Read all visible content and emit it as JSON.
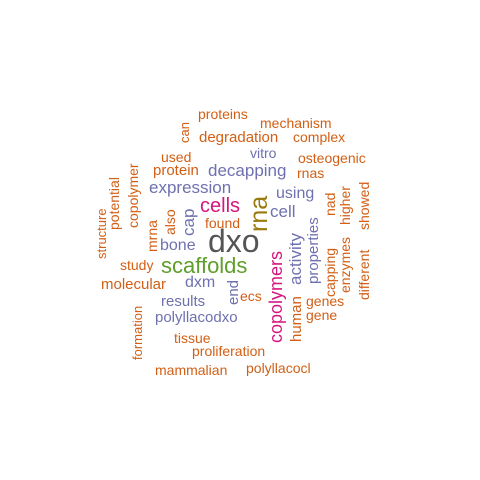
{
  "colors": {
    "dark_gray": "#555555",
    "olive": "#9a7a0d",
    "green": "#5e9e2a",
    "magenta": "#d6157f",
    "purple": "#6f70b0",
    "orange": "#d25f15"
  },
  "words": {
    "dxo": "dxo",
    "rna": "rna",
    "scaffolds": "scaffolds",
    "cells": "cells",
    "copolymers": "copolymers",
    "expression": "expression",
    "decapping": "decapping",
    "activity": "activity",
    "cap": "cap",
    "cell": "cell",
    "using": "using",
    "bone": "bone",
    "dxm": "dxm",
    "results": "results",
    "polyllacodxo": "polyllacodxo",
    "end": "end",
    "ecs": "ecs",
    "properties": "properties",
    "human": "human",
    "genes": "genes",
    "gene": "gene",
    "capping": "capping",
    "enzymes": "enzymes",
    "nad": "nad",
    "higher": "higher",
    "showed": "showed",
    "different": "different",
    "rnas": "rnas",
    "osteogenic": "osteogenic",
    "vitro": "vitro",
    "complex": "complex",
    "mechanism": "mechanism",
    "proteins": "proteins",
    "degradation": "degradation",
    "can": "can",
    "used": "used",
    "protein": "protein",
    "copolymer": "copolymer",
    "potential": "potential",
    "structure": "structure",
    "mrna": "mrna",
    "also": "also",
    "found": "found",
    "study": "study",
    "molecular": "molecular",
    "formation": "formation",
    "tissue": "tissue",
    "proliferation": "proliferation",
    "mammalian": "mammalian",
    "polyllacocl": "polyllacocl"
  }
}
